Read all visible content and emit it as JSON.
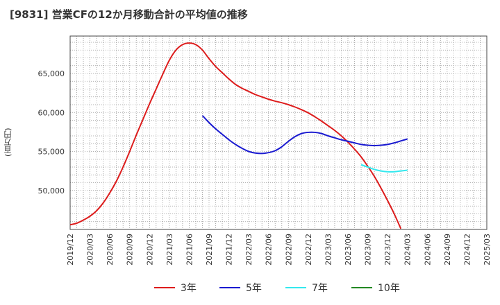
{
  "title": "[9831]  営業CFの12か月移動合計の平均値の推移",
  "y_unit_label": "(百万円)",
  "chart_data": {
    "type": "line",
    "xlabel": "",
    "ylabel": "(百万円)",
    "x_ticks": [
      "2019/12",
      "2020/03",
      "2020/06",
      "2020/09",
      "2020/12",
      "2021/03",
      "2021/06",
      "2021/09",
      "2021/12",
      "2022/03",
      "2022/06",
      "2022/09",
      "2022/12",
      "2023/03",
      "2023/06",
      "2023/09",
      "2023/12",
      "2024/03",
      "2024/06",
      "2024/09",
      "2024/12",
      "2025/03"
    ],
    "y_ticks": [
      50000,
      55000,
      60000,
      65000
    ],
    "y_tick_labels": [
      "50,000",
      "55,000",
      "60,000",
      "65,000"
    ],
    "xlim": [
      "2019/12",
      "2025/03"
    ],
    "ylim": [
      45000,
      69800
    ],
    "grid": true,
    "legend_position": "bottom",
    "series": [
      {
        "name": "3年",
        "color": "#dd1c1c",
        "points": [
          [
            "2019/12",
            45600
          ],
          [
            "2020/01",
            45800
          ],
          [
            "2020/02",
            46200
          ],
          [
            "2020/03",
            46700
          ],
          [
            "2020/04",
            47400
          ],
          [
            "2020/05",
            48400
          ],
          [
            "2020/06",
            49700
          ],
          [
            "2020/07",
            51200
          ],
          [
            "2020/08",
            53000
          ],
          [
            "2020/09",
            55000
          ],
          [
            "2020/10",
            57100
          ],
          [
            "2020/11",
            59100
          ],
          [
            "2020/12",
            61100
          ],
          [
            "2021/01",
            63000
          ],
          [
            "2021/02",
            64900
          ],
          [
            "2021/03",
            66700
          ],
          [
            "2021/04",
            68000
          ],
          [
            "2021/05",
            68700
          ],
          [
            "2021/06",
            68900
          ],
          [
            "2021/07",
            68700
          ],
          [
            "2021/08",
            68000
          ],
          [
            "2021/09",
            66900
          ],
          [
            "2021/10",
            65900
          ],
          [
            "2021/11",
            65100
          ],
          [
            "2021/12",
            64300
          ],
          [
            "2022/01",
            63600
          ],
          [
            "2022/02",
            63100
          ],
          [
            "2022/03",
            62700
          ],
          [
            "2022/04",
            62300
          ],
          [
            "2022/05",
            62000
          ],
          [
            "2022/06",
            61700
          ],
          [
            "2022/07",
            61450
          ],
          [
            "2022/08",
            61250
          ],
          [
            "2022/09",
            61000
          ],
          [
            "2022/10",
            60700
          ],
          [
            "2022/11",
            60350
          ],
          [
            "2022/12",
            59950
          ],
          [
            "2023/01",
            59450
          ],
          [
            "2023/02",
            58900
          ],
          [
            "2023/03",
            58300
          ],
          [
            "2023/04",
            57700
          ],
          [
            "2023/05",
            57000
          ],
          [
            "2023/06",
            56200
          ],
          [
            "2023/07",
            55300
          ],
          [
            "2023/08",
            54300
          ],
          [
            "2023/09",
            53100
          ],
          [
            "2023/10",
            51800
          ],
          [
            "2023/11",
            50300
          ],
          [
            "2023/12",
            48700
          ],
          [
            "2024/01",
            47000
          ],
          [
            "2024/02",
            45100
          ]
        ]
      },
      {
        "name": "5年",
        "color": "#1a1ad0",
        "points": [
          [
            "2021/08",
            59600
          ],
          [
            "2021/09",
            58700
          ],
          [
            "2021/10",
            57900
          ],
          [
            "2021/11",
            57200
          ],
          [
            "2021/12",
            56500
          ],
          [
            "2022/01",
            55900
          ],
          [
            "2022/02",
            55400
          ],
          [
            "2022/03",
            55000
          ],
          [
            "2022/04",
            54800
          ],
          [
            "2022/05",
            54750
          ],
          [
            "2022/06",
            54850
          ],
          [
            "2022/07",
            55100
          ],
          [
            "2022/08",
            55600
          ],
          [
            "2022/09",
            56300
          ],
          [
            "2022/10",
            56900
          ],
          [
            "2022/11",
            57300
          ],
          [
            "2022/12",
            57450
          ],
          [
            "2023/01",
            57450
          ],
          [
            "2023/02",
            57300
          ],
          [
            "2023/03",
            57000
          ],
          [
            "2023/04",
            56750
          ],
          [
            "2023/05",
            56500
          ],
          [
            "2023/06",
            56300
          ],
          [
            "2023/07",
            56100
          ],
          [
            "2023/08",
            55900
          ],
          [
            "2023/09",
            55800
          ],
          [
            "2023/10",
            55750
          ],
          [
            "2023/11",
            55800
          ],
          [
            "2023/12",
            55900
          ],
          [
            "2024/01",
            56100
          ],
          [
            "2024/02",
            56350
          ],
          [
            "2024/03",
            56600
          ]
        ]
      },
      {
        "name": "7年",
        "color": "#33e8ee",
        "points": [
          [
            "2023/08",
            53300
          ],
          [
            "2023/09",
            53000
          ],
          [
            "2023/10",
            52700
          ],
          [
            "2023/11",
            52500
          ],
          [
            "2023/12",
            52400
          ],
          [
            "2024/01",
            52400
          ],
          [
            "2024/02",
            52500
          ],
          [
            "2024/03",
            52600
          ]
        ]
      },
      {
        "name": "10年",
        "color": "#228822",
        "points": []
      }
    ]
  }
}
